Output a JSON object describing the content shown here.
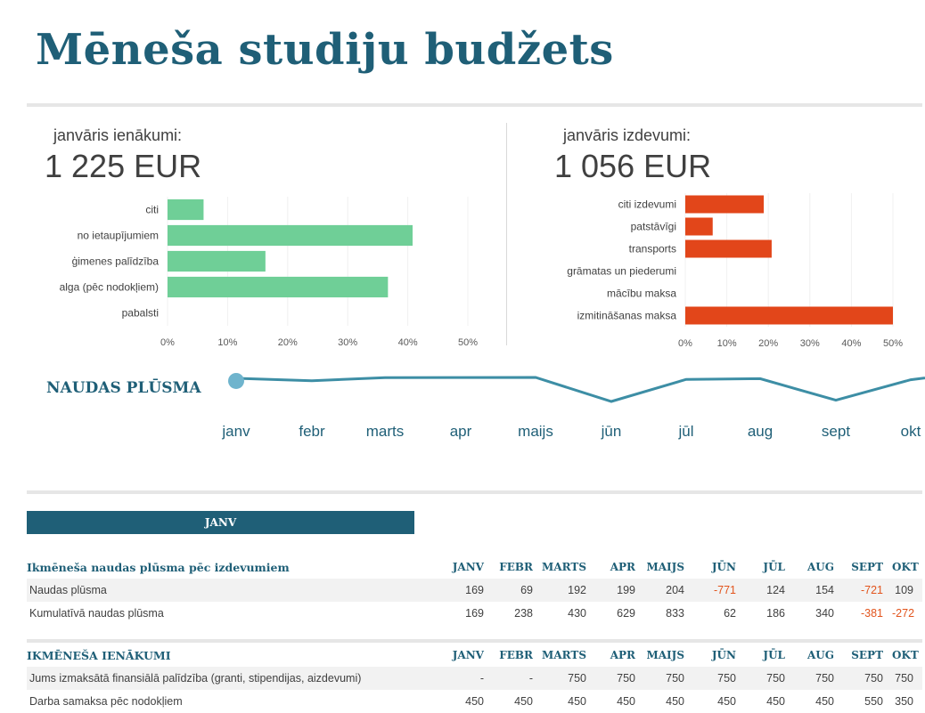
{
  "title": "Mēneša studiju budžets",
  "income": {
    "label": "janvāris ienākumi:",
    "total": "1 225 EUR",
    "chart_data": {
      "type": "bar",
      "orientation": "horizontal",
      "categories": [
        "citi",
        "no ietaupījumiem",
        "ģimenes palīdzība",
        "alga (pēc nodokļiem)",
        "pabalsti"
      ],
      "values": [
        6,
        40.8,
        16.3,
        36.7,
        0
      ],
      "unit": "%",
      "xlim": [
        0,
        50
      ],
      "ticks": [
        "0%",
        "10%",
        "20%",
        "30%",
        "40%",
        "50%"
      ],
      "color": "#6fcf97"
    }
  },
  "expenses": {
    "label": "janvāris izdevumi:",
    "total": "1 056 EUR",
    "chart_data": {
      "type": "bar",
      "orientation": "horizontal",
      "categories": [
        "citi izdevumi",
        "patstāvīgi",
        "transports",
        "grāmatas un piederumi",
        "mācību maksa",
        "izmitināšanas maksa"
      ],
      "values": [
        18.9,
        6.6,
        20.8,
        0,
        0,
        50
      ],
      "unit": "%",
      "xlim": [
        0,
        50
      ],
      "ticks": [
        "0%",
        "10%",
        "20%",
        "30%",
        "40%",
        "50%"
      ],
      "color": "#e2461a"
    }
  },
  "cashflow": {
    "title": "NAUDAS PLŪSMA",
    "months": [
      "janv",
      "febr",
      "marts",
      "apr",
      "maijs",
      "jūn",
      "jūl",
      "aug",
      "sept",
      "okt"
    ],
    "chart_data": {
      "type": "line",
      "x": [
        "janv",
        "febr",
        "marts",
        "apr",
        "maijs",
        "jūn",
        "jūl",
        "aug",
        "sept",
        "okt"
      ],
      "values": [
        169,
        69,
        192,
        199,
        204,
        -771,
        124,
        154,
        -721,
        109
      ],
      "selected": "janv",
      "color": "#3d8ea5"
    }
  },
  "tab": {
    "label": "JANV"
  },
  "table1": {
    "title": "Ikmēneša naudas plūsma pēc izdevumiem",
    "headers": [
      "JANV",
      "FEBR",
      "MARTS",
      "APR",
      "MAIJS",
      "JŪN",
      "JŪL",
      "AUG",
      "SEPT",
      "OKT"
    ],
    "rows": [
      {
        "label": "Naudas plūsma",
        "values": [
          "169",
          "69",
          "192",
          "199",
          "204",
          "-771",
          "124",
          "154",
          "-721",
          "109"
        ]
      },
      {
        "label": "Kumulatīvā naudas plūsma",
        "values": [
          "169",
          "238",
          "430",
          "629",
          "833",
          "62",
          "186",
          "340",
          "-381",
          "-272"
        ]
      }
    ]
  },
  "table2": {
    "title": "IKMĒNEŠA IENĀKUMI",
    "headers": [
      "JANV",
      "FEBR",
      "MARTS",
      "APR",
      "MAIJS",
      "JŪN",
      "JŪL",
      "AUG",
      "SEPT",
      "OKT"
    ],
    "rows": [
      {
        "label": "Jums izmaksātā finansiālā palīdzība (granti, stipendijas, aizdevumi)",
        "values": [
          "-",
          "-",
          "750",
          "750",
          "750",
          "750",
          "750",
          "750",
          "750",
          "750"
        ]
      },
      {
        "label": "Darba samaksa pēc nodokļiem",
        "values": [
          "450",
          "450",
          "450",
          "450",
          "450",
          "450",
          "450",
          "450",
          "550",
          "350"
        ]
      }
    ]
  }
}
